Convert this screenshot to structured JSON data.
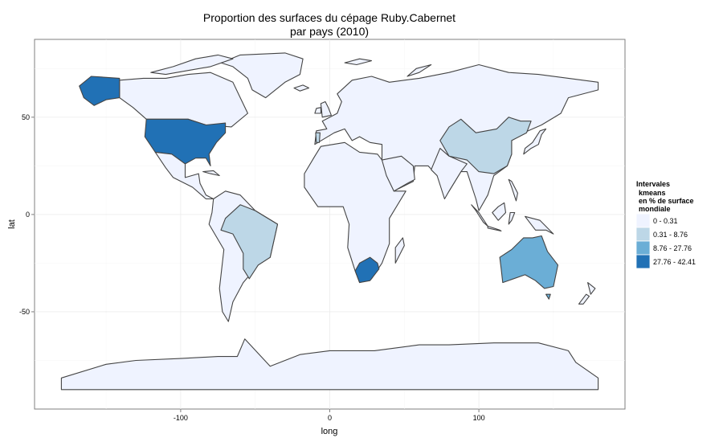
{
  "chart_data": {
    "type": "choropleth",
    "title_lines": [
      "Proportion des surfaces du cépage Ruby.Cabernet",
      "par pays (2010)"
    ],
    "xlabel": "long",
    "ylabel": "lat",
    "xlim": [
      -198,
      198
    ],
    "ylim": [
      -100,
      90
    ],
    "x_ticks": [
      -100,
      0,
      100
    ],
    "y_ticks": [
      -50,
      0,
      50
    ],
    "x_tick_labels": [
      "-100",
      "0",
      "100"
    ],
    "y_tick_labels": [
      "-50",
      "0",
      "50"
    ],
    "grid": true,
    "legend": {
      "position": "right",
      "title_lines": [
        "Intervales",
        "kmeans",
        "en % de surface",
        "mondiale"
      ],
      "classes": [
        {
          "label": "0 - 0.31",
          "color": "#eff3ff"
        },
        {
          "label": "0.31 - 8.76",
          "color": "#bdd7e7"
        },
        {
          "label": "8.76 - 27.76",
          "color": "#6baed6"
        },
        {
          "label": "27.76 - 42.41",
          "color": "#2171b5"
        }
      ]
    },
    "country_classes": [
      {
        "country": "United States",
        "class": 3
      },
      {
        "country": "Alaska (United States)",
        "class": 3
      },
      {
        "country": "South Africa",
        "class": 3
      },
      {
        "country": "Australia",
        "class": 2
      },
      {
        "country": "Brazil",
        "class": 1
      },
      {
        "country": "China",
        "class": 1
      },
      {
        "country": "Portugal",
        "class": 1
      }
    ],
    "default_class": 0
  }
}
